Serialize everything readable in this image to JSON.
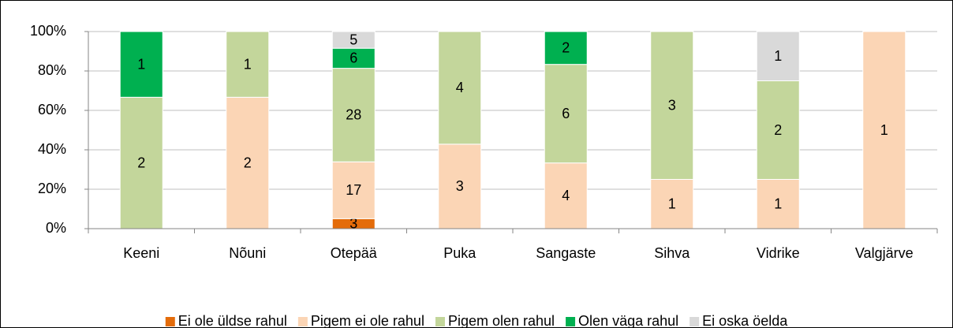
{
  "chart_data": {
    "type": "bar",
    "stacking": "percent",
    "categories": [
      "Keeni",
      "Nõuni",
      "Otepää",
      "Puka",
      "Sangaste",
      "Sihva",
      "Vidrike",
      "Valgjärve"
    ],
    "series": [
      {
        "name": "Ei ole üldse rahul",
        "color": "#e46c0a",
        "values": [
          null,
          null,
          3,
          null,
          null,
          null,
          null,
          null
        ]
      },
      {
        "name": "Pigem ei ole rahul",
        "color": "#fbd5b5",
        "values": [
          null,
          2,
          17,
          3,
          4,
          1,
          1,
          1
        ]
      },
      {
        "name": "Pigem olen rahul",
        "color": "#c3d69b",
        "values": [
          2,
          1,
          28,
          4,
          6,
          3,
          2,
          null
        ]
      },
      {
        "name": "Olen väga rahul",
        "color": "#00b050",
        "values": [
          1,
          null,
          6,
          null,
          2,
          null,
          null,
          null
        ]
      },
      {
        "name": "Ei oska öelda",
        "color": "#d9d9d9",
        "values": [
          null,
          null,
          5,
          null,
          null,
          null,
          1,
          null
        ]
      }
    ],
    "ylim": [
      0,
      100
    ],
    "yticks": [
      {
        "value": 0,
        "label": "0%"
      },
      {
        "value": 20,
        "label": "20%"
      },
      {
        "value": 40,
        "label": "40%"
      },
      {
        "value": 60,
        "label": "60%"
      },
      {
        "value": 80,
        "label": "80%"
      },
      {
        "value": 100,
        "label": "100%"
      }
    ],
    "grid": true,
    "legend": "bottom"
  }
}
